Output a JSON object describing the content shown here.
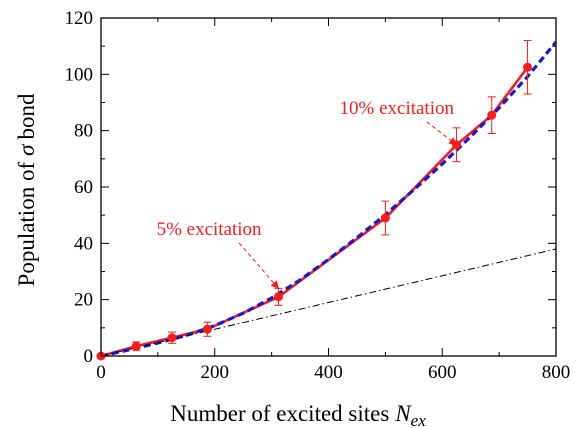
{
  "chart_data": {
    "type": "line",
    "xlabel": "Number of excited sites",
    "xlabel_symbol": "N",
    "xlabel_subscript": "ex",
    "ylabel": "Population of",
    "ylabel_symbol": "σ",
    "ylabel_suffix": "bond",
    "xlim": [
      0,
      800
    ],
    "ylim": [
      0,
      120
    ],
    "xticks": [
      "0",
      "200",
      "400",
      "600",
      "800"
    ],
    "yticks": [
      "0",
      "20",
      "40",
      "60",
      "80",
      "100",
      "120"
    ],
    "grid": false,
    "series": [
      {
        "style": "solid-red-with-markers-and-error-bars",
        "color": "#ff1a1a",
        "x": [
          0,
          62,
          125,
          187,
          312,
          500,
          625,
          687,
          750
        ],
        "y": [
          0,
          3.5,
          6.5,
          9.5,
          21,
          49,
          75,
          85.5,
          102.5
        ],
        "err": [
          0,
          1.5,
          2,
          2.5,
          3,
          6,
          6,
          6.5,
          9.5
        ]
      },
      {
        "style": "dashed-blue-fit",
        "color": "#1a1acc",
        "x": [
          0,
          50,
          100,
          150,
          200,
          250,
          300,
          350,
          400,
          450,
          500,
          550,
          600,
          650,
          700,
          750,
          800
        ],
        "y": [
          0,
          2.2,
          4.6,
          7.3,
          10.8,
          15.2,
          20.6,
          27.0,
          34.3,
          42.0,
          50.2,
          59.0,
          68.2,
          77.9,
          88.1,
          99.2,
          111.5
        ]
      },
      {
        "style": "dash-dot-black-linear",
        "color": "#000000",
        "x": [
          0,
          800
        ],
        "y": [
          0,
          38
        ]
      }
    ],
    "annotations": [
      {
        "text": "5% excitation",
        "color": "#ff1a1a",
        "text_at": [
          190,
          43
        ],
        "arrow_to": [
          312,
          24
        ]
      },
      {
        "text": "10% excitation",
        "color": "#ff1a1a",
        "text_at": [
          520,
          86
        ],
        "arrow_to": [
          625,
          75
        ]
      }
    ]
  }
}
